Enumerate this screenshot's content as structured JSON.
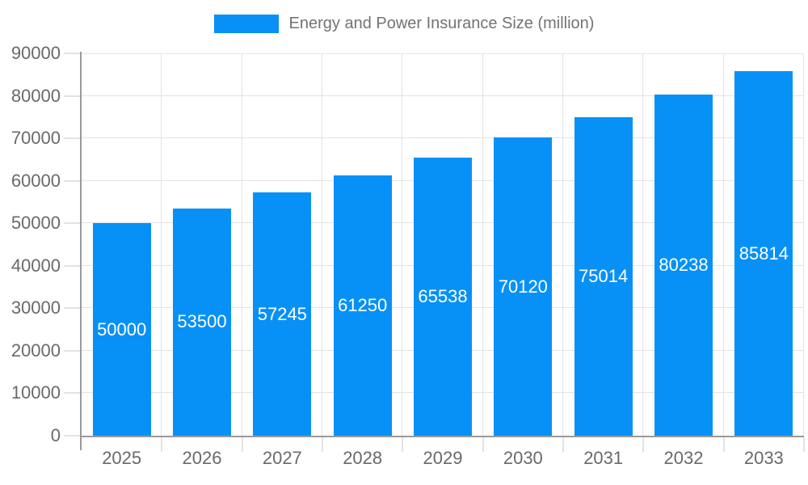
{
  "chart_data": {
    "type": "bar",
    "title": "Energy and Power Insurance Size (million)",
    "categories": [
      "2025",
      "2026",
      "2027",
      "2028",
      "2029",
      "2030",
      "2031",
      "2032",
      "2033"
    ],
    "values": [
      50000,
      53500,
      57245,
      61250,
      65538,
      70120,
      75014,
      80238,
      85814
    ],
    "xlabel": "",
    "ylabel": "",
    "ylim": [
      0,
      90000
    ],
    "ytick_step": 10000,
    "ytick_labels": [
      "0",
      "10000",
      "20000",
      "30000",
      "40000",
      "50000",
      "60000",
      "70000",
      "80000",
      "90000"
    ],
    "value_labels_inside_bars": true,
    "grid": true,
    "legend_position": "top",
    "colors": {
      "bar": "#0791f7",
      "value_label": "#ffffff",
      "axis_text": "#696969",
      "title_text": "#737373",
      "grid": "#e3e3e3",
      "axis_line": "#9a9a9a"
    }
  }
}
